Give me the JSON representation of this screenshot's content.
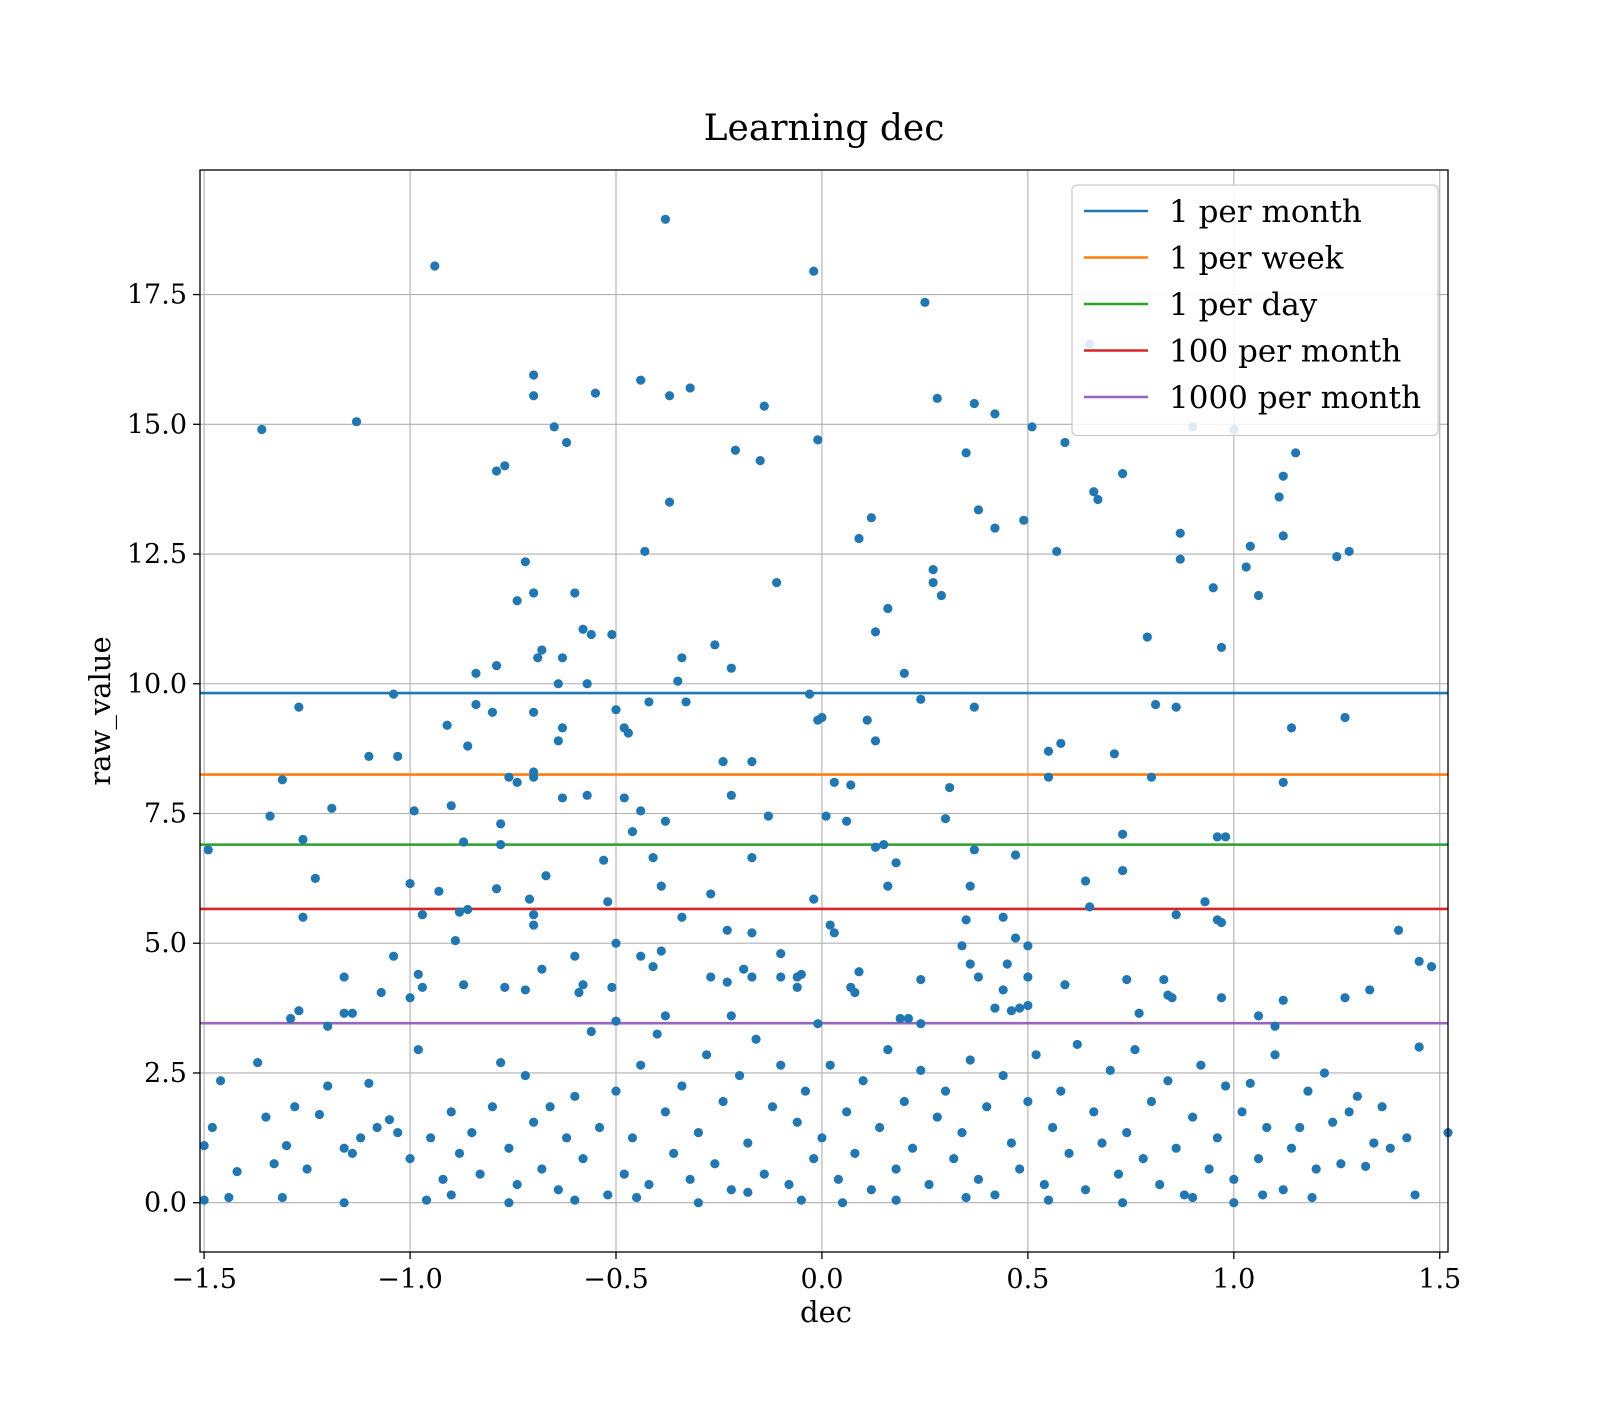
{
  "chart_data": {
    "type": "scatter",
    "title": "Learning dec",
    "xlabel": "dec",
    "ylabel": "raw_value",
    "xlim": [
      -1.51,
      1.52
    ],
    "ylim": [
      -0.95,
      19.9
    ],
    "xticks": [
      -1.5,
      -1.0,
      -0.5,
      0.0,
      0.5,
      1.0,
      1.5
    ],
    "xtick_labels": [
      "−1.5",
      "−1.0",
      "−0.5",
      "0.0",
      "0.5",
      "1.0",
      "1.5"
    ],
    "yticks": [
      0.0,
      2.5,
      5.0,
      7.5,
      10.0,
      12.5,
      15.0,
      17.5
    ],
    "ytick_labels": [
      "0.0",
      "2.5",
      "5.0",
      "7.5",
      "10.0",
      "12.5",
      "15.0",
      "17.5"
    ],
    "grid": true,
    "legend_position": "top-right",
    "scatter_color": "#1f77b4",
    "hlines": [
      {
        "name": "1 per month",
        "y": 9.82,
        "color": "#1f77b4"
      },
      {
        "name": "1 per week",
        "y": 8.25,
        "color": "#ff7f0e"
      },
      {
        "name": "1 per day",
        "y": 6.9,
        "color": "#2ca02c"
      },
      {
        "name": "100 per month",
        "y": 5.66,
        "color": "#d62728"
      },
      {
        "name": "1000 per month",
        "y": 3.46,
        "color": "#9467bd"
      }
    ],
    "points_sampled": [
      [
        -0.38,
        18.95
      ],
      [
        -0.94,
        18.05
      ],
      [
        -0.02,
        17.95
      ],
      [
        0.25,
        17.35
      ],
      [
        0.65,
        16.55
      ],
      [
        -1.36,
        14.9
      ],
      [
        -1.13,
        15.05
      ],
      [
        -0.7,
        15.95
      ],
      [
        -0.7,
        15.55
      ],
      [
        -0.55,
        15.6
      ],
      [
        -0.44,
        15.85
      ],
      [
        -0.37,
        15.55
      ],
      [
        -0.32,
        15.7
      ],
      [
        -0.65,
        14.95
      ],
      [
        -0.62,
        14.65
      ],
      [
        -0.79,
        14.1
      ],
      [
        -0.77,
        14.2
      ],
      [
        -0.21,
        14.5
      ],
      [
        -0.15,
        14.3
      ],
      [
        -0.14,
        15.35
      ],
      [
        -0.01,
        14.7
      ],
      [
        0.28,
        15.5
      ],
      [
        0.37,
        15.4
      ],
      [
        0.42,
        15.2
      ],
      [
        0.35,
        14.45
      ],
      [
        0.51,
        14.95
      ],
      [
        0.59,
        14.65
      ],
      [
        0.66,
        13.7
      ],
      [
        0.67,
        13.55
      ],
      [
        0.73,
        14.05
      ],
      [
        0.9,
        14.95
      ],
      [
        1.0,
        14.9
      ],
      [
        1.11,
        13.6
      ],
      [
        1.12,
        14.0
      ],
      [
        1.15,
        14.45
      ],
      [
        -0.37,
        13.5
      ],
      [
        0.38,
        13.35
      ],
      [
        0.42,
        13.0
      ],
      [
        0.49,
        13.15
      ],
      [
        0.12,
        13.2
      ],
      [
        0.09,
        12.8
      ],
      [
        0.57,
        12.55
      ],
      [
        0.87,
        12.9
      ],
      [
        0.87,
        12.4
      ],
      [
        1.12,
        12.85
      ],
      [
        1.04,
        12.65
      ],
      [
        1.03,
        12.25
      ],
      [
        1.25,
        12.45
      ],
      [
        1.28,
        12.55
      ],
      [
        -0.43,
        12.55
      ],
      [
        -0.72,
        12.35
      ],
      [
        -0.74,
        11.6
      ],
      [
        -0.7,
        11.75
      ],
      [
        -0.6,
        11.75
      ],
      [
        -0.11,
        11.95
      ],
      [
        0.27,
        12.2
      ],
      [
        0.27,
        11.95
      ],
      [
        0.29,
        11.7
      ],
      [
        0.95,
        11.85
      ],
      [
        1.06,
        11.7
      ],
      [
        -0.58,
        11.05
      ],
      [
        -0.56,
        10.95
      ],
      [
        -0.51,
        10.95
      ],
      [
        0.16,
        11.45
      ],
      [
        0.13,
        11.0
      ],
      [
        0.79,
        10.9
      ],
      [
        0.97,
        10.7
      ],
      [
        -0.68,
        10.65
      ],
      [
        -0.69,
        10.5
      ],
      [
        -0.63,
        10.5
      ],
      [
        -0.34,
        10.5
      ],
      [
        -0.26,
        10.75
      ],
      [
        -0.22,
        10.3
      ],
      [
        0.2,
        10.2
      ],
      [
        -0.84,
        10.2
      ],
      [
        -0.79,
        10.35
      ],
      [
        -0.64,
        10.0
      ],
      [
        -0.57,
        10.0
      ],
      [
        -0.35,
        10.05
      ],
      [
        -0.84,
        9.6
      ],
      [
        -0.8,
        9.45
      ],
      [
        -1.27,
        9.55
      ],
      [
        -1.04,
        9.8
      ],
      [
        -0.91,
        9.2
      ],
      [
        -0.7,
        9.45
      ],
      [
        -0.63,
        9.15
      ],
      [
        -0.64,
        8.9
      ],
      [
        -0.5,
        9.5
      ],
      [
        -0.48,
        9.15
      ],
      [
        -0.47,
        9.05
      ],
      [
        -0.42,
        9.65
      ],
      [
        -0.33,
        9.65
      ],
      [
        -0.03,
        9.8
      ],
      [
        -0.01,
        9.3
      ],
      [
        0.0,
        9.35
      ],
      [
        0.11,
        9.3
      ],
      [
        0.13,
        8.9
      ],
      [
        0.24,
        9.7
      ],
      [
        0.37,
        9.55
      ],
      [
        0.81,
        9.6
      ],
      [
        0.86,
        9.55
      ],
      [
        1.14,
        9.15
      ],
      [
        1.27,
        9.35
      ],
      [
        -1.1,
        8.6
      ],
      [
        -1.03,
        8.6
      ],
      [
        -0.86,
        8.8
      ],
      [
        -0.76,
        8.2
      ],
      [
        -0.74,
        8.1
      ],
      [
        -0.7,
        8.2
      ],
      [
        -0.7,
        8.3
      ],
      [
        -0.24,
        8.5
      ],
      [
        -0.17,
        8.5
      ],
      [
        -1.31,
        8.15
      ],
      [
        0.03,
        8.1
      ],
      [
        0.07,
        8.05
      ],
      [
        0.55,
        8.7
      ],
      [
        0.58,
        8.85
      ],
      [
        0.55,
        8.2
      ],
      [
        0.71,
        8.65
      ],
      [
        0.8,
        8.2
      ],
      [
        1.12,
        8.1
      ],
      [
        -1.34,
        7.45
      ],
      [
        -1.19,
        7.6
      ],
      [
        -0.99,
        7.55
      ],
      [
        -0.9,
        7.65
      ],
      [
        -0.78,
        7.3
      ],
      [
        -0.63,
        7.8
      ],
      [
        -0.57,
        7.85
      ],
      [
        -0.48,
        7.8
      ],
      [
        -0.44,
        7.55
      ],
      [
        -0.38,
        7.35
      ],
      [
        -0.22,
        7.85
      ],
      [
        -0.13,
        7.45
      ],
      [
        0.01,
        7.45
      ],
      [
        0.06,
        7.35
      ],
      [
        0.31,
        8.0
      ],
      [
        0.3,
        7.4
      ],
      [
        0.73,
        7.1
      ],
      [
        0.96,
        7.05
      ],
      [
        0.98,
        7.05
      ],
      [
        -1.26,
        7.0
      ],
      [
        -0.87,
        6.95
      ],
      [
        -0.78,
        6.9
      ],
      [
        -0.46,
        7.15
      ],
      [
        -0.41,
        6.65
      ],
      [
        -0.27,
        5.95
      ],
      [
        -0.17,
        6.65
      ],
      [
        0.13,
        6.85
      ],
      [
        0.15,
        6.9
      ],
      [
        0.18,
        6.55
      ],
      [
        0.37,
        6.8
      ],
      [
        0.47,
        6.7
      ],
      [
        0.73,
        6.4
      ],
      [
        -1.23,
        6.25
      ],
      [
        -1.0,
        6.15
      ],
      [
        -0.93,
        6.0
      ],
      [
        -0.79,
        6.05
      ],
      [
        -0.67,
        6.3
      ],
      [
        -0.53,
        6.6
      ],
      [
        -0.39,
        6.1
      ],
      [
        0.16,
        6.1
      ],
      [
        0.36,
        6.1
      ],
      [
        0.64,
        6.2
      ],
      [
        -1.26,
        5.5
      ],
      [
        -0.97,
        5.55
      ],
      [
        -0.88,
        5.6
      ],
      [
        -0.86,
        5.65
      ],
      [
        -0.71,
        5.85
      ],
      [
        -0.7,
        5.55
      ],
      [
        -0.7,
        5.35
      ],
      [
        -0.52,
        5.8
      ],
      [
        -0.34,
        5.5
      ],
      [
        -0.02,
        5.85
      ],
      [
        0.02,
        5.35
      ],
      [
        0.03,
        5.2
      ],
      [
        0.35,
        5.45
      ],
      [
        0.44,
        5.5
      ],
      [
        0.65,
        5.7
      ],
      [
        0.86,
        5.55
      ],
      [
        0.93,
        5.8
      ],
      [
        0.96,
        5.45
      ],
      [
        0.97,
        5.4
      ],
      [
        -1.49,
        6.8
      ],
      [
        -0.89,
        5.05
      ],
      [
        -0.5,
        5.0
      ],
      [
        -0.23,
        5.25
      ],
      [
        -0.17,
        5.2
      ],
      [
        0.34,
        4.95
      ],
      [
        0.47,
        5.1
      ],
      [
        0.5,
        4.95
      ],
      [
        1.4,
        5.25
      ],
      [
        -1.16,
        4.35
      ],
      [
        -1.04,
        4.75
      ],
      [
        -0.98,
        4.4
      ],
      [
        -0.97,
        4.15
      ],
      [
        -0.87,
        4.2
      ],
      [
        -0.77,
        4.15
      ],
      [
        -0.72,
        4.1
      ],
      [
        -0.68,
        4.5
      ],
      [
        -0.6,
        4.75
      ],
      [
        -0.59,
        4.05
      ],
      [
        -0.58,
        4.2
      ],
      [
        -0.51,
        4.15
      ],
      [
        -0.44,
        4.75
      ],
      [
        -0.39,
        4.85
      ],
      [
        -0.41,
        4.55
      ],
      [
        -0.27,
        4.35
      ],
      [
        -0.23,
        4.25
      ],
      [
        -0.19,
        4.5
      ],
      [
        -0.17,
        4.35
      ],
      [
        -0.1,
        4.8
      ],
      [
        -0.1,
        4.35
      ],
      [
        -0.06,
        4.35
      ],
      [
        -0.06,
        4.15
      ],
      [
        -0.05,
        4.4
      ],
      [
        0.09,
        4.45
      ],
      [
        0.07,
        4.15
      ],
      [
        0.08,
        4.05
      ],
      [
        0.24,
        4.3
      ],
      [
        0.36,
        4.6
      ],
      [
        0.38,
        4.35
      ],
      [
        0.44,
        4.1
      ],
      [
        0.45,
        4.6
      ],
      [
        0.5,
        4.35
      ],
      [
        0.59,
        4.2
      ],
      [
        0.74,
        4.3
      ],
      [
        0.83,
        4.3
      ],
      [
        0.84,
        4.0
      ],
      [
        0.85,
        3.95
      ],
      [
        0.97,
        3.95
      ],
      [
        1.12,
        3.9
      ],
      [
        1.27,
        3.95
      ],
      [
        1.33,
        4.1
      ],
      [
        1.45,
        4.65
      ],
      [
        1.48,
        4.55
      ],
      [
        -1.29,
        3.55
      ],
      [
        -1.27,
        3.7
      ],
      [
        -1.2,
        3.4
      ],
      [
        -1.16,
        3.65
      ],
      [
        -1.14,
        3.65
      ],
      [
        -1.07,
        4.05
      ],
      [
        -1.0,
        3.95
      ],
      [
        -0.5,
        3.5
      ],
      [
        -0.38,
        3.6
      ],
      [
        -0.22,
        3.6
      ],
      [
        -0.01,
        3.45
      ],
      [
        0.19,
        3.55
      ],
      [
        0.21,
        3.55
      ],
      [
        0.24,
        3.45
      ],
      [
        0.42,
        3.75
      ],
      [
        0.46,
        3.7
      ],
      [
        0.48,
        3.75
      ],
      [
        0.5,
        3.8
      ],
      [
        0.77,
        3.65
      ],
      [
        1.06,
        3.6
      ],
      [
        1.1,
        3.4
      ],
      [
        -1.42,
        0.6
      ],
      [
        -1.46,
        2.35
      ],
      [
        -1.37,
        2.7
      ],
      [
        -1.35,
        1.65
      ],
      [
        -1.33,
        0.75
      ],
      [
        -1.3,
        1.1
      ],
      [
        -1.28,
        1.85
      ],
      [
        -1.25,
        0.65
      ],
      [
        -1.22,
        1.7
      ],
      [
        -1.2,
        2.25
      ],
      [
        -1.16,
        1.05
      ],
      [
        -1.14,
        0.95
      ],
      [
        -1.12,
        1.25
      ],
      [
        -1.1,
        2.3
      ],
      [
        -1.08,
        1.45
      ],
      [
        -1.05,
        1.6
      ],
      [
        -1.03,
        1.35
      ],
      [
        -1.0,
        0.85
      ],
      [
        -0.98,
        2.95
      ],
      [
        -0.95,
        1.25
      ],
      [
        -0.92,
        0.45
      ],
      [
        -0.9,
        1.75
      ],
      [
        -0.88,
        0.95
      ],
      [
        -0.85,
        1.35
      ],
      [
        -0.83,
        0.55
      ],
      [
        -0.8,
        1.85
      ],
      [
        -0.78,
        2.7
      ],
      [
        -0.76,
        1.05
      ],
      [
        -0.74,
        0.35
      ],
      [
        -0.72,
        2.45
      ],
      [
        -0.7,
        1.55
      ],
      [
        -0.68,
        0.65
      ],
      [
        -0.66,
        1.85
      ],
      [
        -0.64,
        0.25
      ],
      [
        -0.62,
        1.25
      ],
      [
        -0.6,
        2.05
      ],
      [
        -0.58,
        0.85
      ],
      [
        -0.56,
        3.3
      ],
      [
        -0.54,
        1.45
      ],
      [
        -0.52,
        0.15
      ],
      [
        -0.5,
        2.15
      ],
      [
        -0.48,
        0.55
      ],
      [
        -0.46,
        1.25
      ],
      [
        -0.44,
        2.65
      ],
      [
        -0.42,
        0.35
      ],
      [
        -0.4,
        3.25
      ],
      [
        -0.38,
        1.75
      ],
      [
        -0.36,
        0.95
      ],
      [
        -0.34,
        2.25
      ],
      [
        -0.32,
        0.45
      ],
      [
        -0.3,
        1.35
      ],
      [
        -0.28,
        2.85
      ],
      [
        -0.26,
        0.75
      ],
      [
        -0.24,
        1.95
      ],
      [
        -0.22,
        0.25
      ],
      [
        -0.2,
        2.45
      ],
      [
        -0.18,
        1.15
      ],
      [
        -0.16,
        3.15
      ],
      [
        -0.14,
        0.55
      ],
      [
        -0.12,
        1.85
      ],
      [
        -0.1,
        2.65
      ],
      [
        -0.08,
        0.35
      ],
      [
        -0.06,
        1.55
      ],
      [
        -0.04,
        2.15
      ],
      [
        -0.02,
        0.85
      ],
      [
        0.0,
        1.25
      ],
      [
        0.02,
        2.65
      ],
      [
        0.04,
        0.45
      ],
      [
        0.06,
        1.75
      ],
      [
        0.08,
        0.95
      ],
      [
        0.1,
        2.35
      ],
      [
        0.12,
        0.25
      ],
      [
        0.14,
        1.45
      ],
      [
        0.16,
        2.95
      ],
      [
        0.18,
        0.65
      ],
      [
        0.2,
        1.95
      ],
      [
        0.22,
        1.05
      ],
      [
        0.24,
        2.55
      ],
      [
        0.26,
        0.35
      ],
      [
        0.28,
        1.65
      ],
      [
        0.3,
        2.15
      ],
      [
        0.32,
        0.85
      ],
      [
        0.34,
        1.35
      ],
      [
        0.36,
        2.75
      ],
      [
        0.38,
        0.45
      ],
      [
        0.4,
        1.85
      ],
      [
        0.42,
        0.15
      ],
      [
        0.44,
        2.45
      ],
      [
        0.46,
        1.15
      ],
      [
        0.48,
        0.65
      ],
      [
        0.5,
        1.95
      ],
      [
        0.52,
        2.85
      ],
      [
        0.54,
        0.35
      ],
      [
        0.56,
        1.45
      ],
      [
        0.58,
        2.15
      ],
      [
        0.6,
        0.95
      ],
      [
        0.62,
        3.05
      ],
      [
        0.64,
        0.25
      ],
      [
        0.66,
        1.75
      ],
      [
        0.68,
        1.15
      ],
      [
        0.7,
        2.55
      ],
      [
        0.72,
        0.55
      ],
      [
        0.74,
        1.35
      ],
      [
        0.76,
        2.95
      ],
      [
        0.78,
        0.85
      ],
      [
        0.8,
        1.95
      ],
      [
        0.82,
        0.35
      ],
      [
        0.84,
        2.35
      ],
      [
        0.86,
        1.05
      ],
      [
        0.88,
        0.15
      ],
      [
        0.9,
        1.65
      ],
      [
        0.92,
        2.65
      ],
      [
        0.94,
        0.65
      ],
      [
        0.96,
        1.25
      ],
      [
        0.98,
        2.25
      ],
      [
        1.0,
        0.45
      ],
      [
        1.02,
        1.75
      ],
      [
        1.04,
        2.3
      ],
      [
        1.06,
        0.85
      ],
      [
        1.08,
        1.45
      ],
      [
        1.1,
        2.85
      ],
      [
        1.12,
        0.25
      ],
      [
        1.14,
        1.05
      ],
      [
        1.16,
        1.45
      ],
      [
        1.18,
        2.15
      ],
      [
        1.2,
        0.65
      ],
      [
        1.22,
        2.5
      ],
      [
        1.24,
        1.55
      ],
      [
        1.26,
        0.75
      ],
      [
        1.28,
        1.75
      ],
      [
        1.3,
        2.05
      ],
      [
        1.32,
        0.7
      ],
      [
        1.34,
        1.15
      ],
      [
        1.36,
        1.85
      ],
      [
        1.38,
        1.05
      ],
      [
        1.42,
        1.25
      ],
      [
        1.44,
        0.15
      ],
      [
        1.45,
        3.0
      ],
      [
        1.52,
        1.35
      ],
      [
        -1.5,
        1.1
      ],
      [
        -1.48,
        1.45
      ],
      [
        -1.5,
        0.05
      ],
      [
        -1.44,
        0.1
      ],
      [
        -1.31,
        0.1
      ],
      [
        -1.16,
        0.0
      ],
      [
        -0.96,
        0.05
      ],
      [
        -0.9,
        0.15
      ],
      [
        -0.76,
        0.0
      ],
      [
        -0.6,
        0.05
      ],
      [
        -0.45,
        0.1
      ],
      [
        -0.3,
        0.0
      ],
      [
        -0.18,
        0.2
      ],
      [
        -0.05,
        0.05
      ],
      [
        0.05,
        0.0
      ],
      [
        0.18,
        0.05
      ],
      [
        0.35,
        0.1
      ],
      [
        0.55,
        0.05
      ],
      [
        0.73,
        0.0
      ],
      [
        0.9,
        0.1
      ],
      [
        1.0,
        0.0
      ],
      [
        1.07,
        0.15
      ],
      [
        1.19,
        0.1
      ]
    ]
  }
}
